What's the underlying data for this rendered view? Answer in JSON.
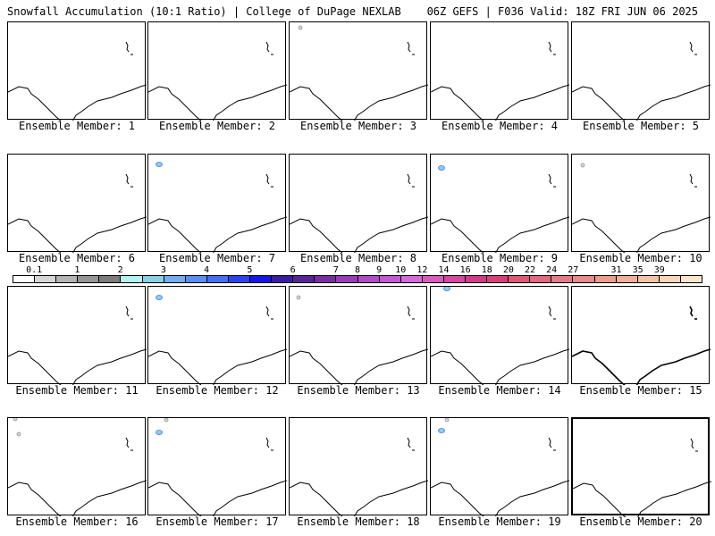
{
  "header": {
    "left": "Snowfall Accumulation (10:1 Ratio) | College of DuPage NEXLAB",
    "right": "06Z GEFS | F036 Valid: 18Z FRI JUN 06 2025"
  },
  "caption_prefix": "Ensemble Member:",
  "members": [
    "1",
    "2",
    "3",
    "4",
    "5",
    "6",
    "7",
    "8",
    "9",
    "10",
    "11",
    "12",
    "13",
    "14",
    "15",
    "16",
    "17",
    "18",
    "19",
    "20"
  ],
  "legend": {
    "labels": [
      "0.1",
      "1",
      "2",
      "3",
      "4",
      "5",
      "6",
      "7",
      "8",
      "9",
      "10",
      "12",
      "14",
      "16",
      "18",
      "20",
      "22",
      "24",
      "27",
      "31",
      "35",
      "39"
    ],
    "colors": [
      "#ffffff",
      "#d6d6d6",
      "#b4b4b4",
      "#969696",
      "#7c7c7c",
      "#b2f2f0",
      "#8ad0e6",
      "#74aef0",
      "#5a8ef4",
      "#4470f2",
      "#2a44ee",
      "#1616e6",
      "#3a1ca0",
      "#5a2496",
      "#7a2ca2",
      "#9a3cb6",
      "#b04cc4",
      "#c45ad2",
      "#d46cd8",
      "#d85cbe",
      "#d24aa2",
      "#d03c8a",
      "#d8407a",
      "#e05878",
      "#e06a80",
      "#e27c88",
      "#e68c8c",
      "#ea9e8e",
      "#efb19a",
      "#f3c3a6",
      "#f7d5b6",
      "#fbe6cc"
    ]
  }
}
